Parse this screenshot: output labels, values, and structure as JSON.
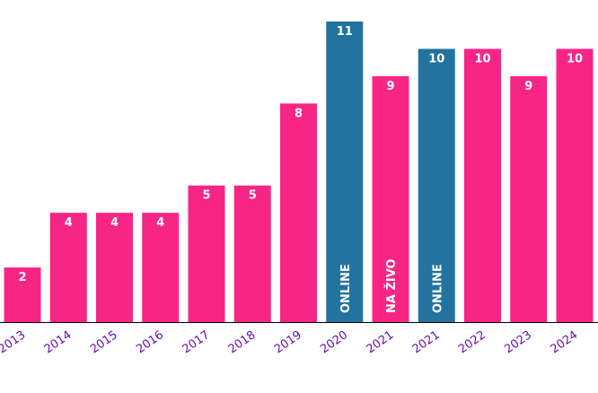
{
  "colors": {
    "pink": "#f72585",
    "blue": "#22739e",
    "tick_text": "#6a0dad",
    "label_text": "#ffffff",
    "axis": "#000000"
  },
  "chart_data": {
    "type": "bar",
    "title": "",
    "xlabel": "",
    "ylabel": "",
    "ylim": [
      0,
      11
    ],
    "grid": false,
    "legend": "none",
    "categories": [
      "2013",
      "2014",
      "2015",
      "2016",
      "2017",
      "2018",
      "2019",
      "2020",
      "2021",
      "2021",
      "2022",
      "2023",
      "2024"
    ],
    "values": [
      2,
      4,
      4,
      4,
      5,
      5,
      8,
      11,
      9,
      10,
      10,
      9,
      10
    ],
    "bar_colors": [
      "pink",
      "pink",
      "pink",
      "pink",
      "pink",
      "pink",
      "pink",
      "blue",
      "pink",
      "blue",
      "pink",
      "pink",
      "pink"
    ],
    "annotations": [
      "",
      "",
      "",
      "",
      "",
      "",
      "",
      "ONLINE",
      "NA ŽIVO",
      "ONLINE",
      "",
      "",
      ""
    ]
  }
}
